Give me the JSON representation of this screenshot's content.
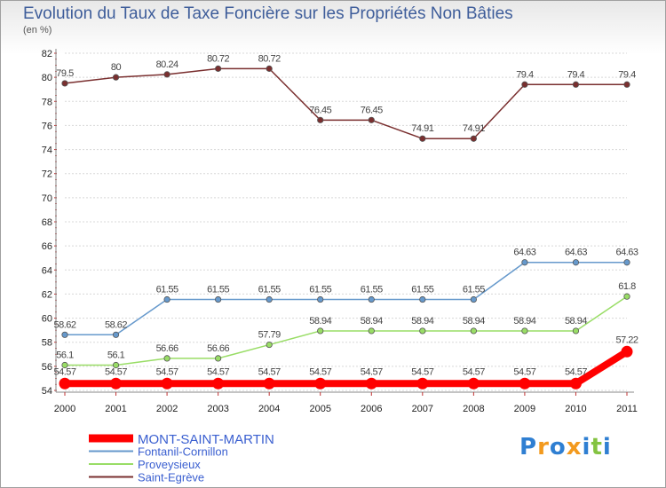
{
  "chart_data": {
    "type": "line",
    "title": "Evolution du Taux de Taxe Foncière sur les Propriétés Non Bâties",
    "subtitle": "(en %)",
    "xlabel": "",
    "ylabel": "(en %)",
    "categories": [
      "2000",
      "2001",
      "2002",
      "2003",
      "2004",
      "2005",
      "2006",
      "2007",
      "2008",
      "2009",
      "2010",
      "2011"
    ],
    "ylim": [
      54,
      82
    ],
    "yticks": [
      54,
      56,
      58,
      60,
      62,
      64,
      66,
      68,
      70,
      72,
      74,
      76,
      78,
      80,
      82
    ],
    "grid": "horizontal",
    "series": [
      {
        "name": "MONT-SAINT-MARTIN",
        "color": "#ff0000",
        "labels": [
          "54.57",
          "54.57",
          "54.57",
          "54.57",
          "54.57",
          "54.57",
          "54.57",
          "54.57",
          "54.57",
          "54.57",
          "54.57",
          "57.22"
        ],
        "values": [
          54.57,
          54.57,
          54.57,
          54.57,
          54.57,
          54.57,
          54.57,
          54.57,
          54.57,
          54.57,
          54.57,
          57.22
        ]
      },
      {
        "name": "Fontanil-Cornillon",
        "color": "#6699cc",
        "labels": [
          "58.62",
          "58.62",
          "61.55",
          "61.55",
          "61.55",
          "61.55",
          "61.55",
          "61.55",
          "61.55",
          "64.63",
          "64.63",
          "64.63"
        ],
        "values": [
          58.62,
          58.62,
          61.55,
          61.55,
          61.55,
          61.55,
          61.55,
          61.55,
          61.55,
          64.63,
          64.63,
          64.63
        ]
      },
      {
        "name": "Proveysieux",
        "color": "#99dd66",
        "labels": [
          "56.1",
          "56.1",
          "56.66",
          "56.66",
          "57.79",
          "58.94",
          "58.94",
          "58.94",
          "58.94",
          "58.94",
          "58.94",
          "61.8"
        ],
        "values": [
          56.1,
          56.1,
          56.66,
          56.66,
          57.79,
          58.94,
          58.94,
          58.94,
          58.94,
          58.94,
          58.94,
          61.8
        ]
      },
      {
        "name": "Saint-Egrève",
        "color": "#7a2f2f",
        "labels": [
          "79.5",
          "80",
          "80.24",
          "80.72",
          "80.72",
          "76.45",
          "76.45",
          "74.91",
          "74.91",
          "79.4",
          "79.4",
          "79.4"
        ],
        "values": [
          79.5,
          80,
          80.24,
          80.72,
          80.72,
          76.45,
          76.45,
          74.91,
          74.91,
          79.4,
          79.4,
          79.4
        ]
      }
    ]
  },
  "legend": {
    "items": [
      {
        "label": "MONT-SAINT-MARTIN",
        "color": "#ff0000"
      },
      {
        "label": "Fontanil-Cornillon",
        "color": "#6699cc"
      },
      {
        "label": "Proveysieux",
        "color": "#99dd66"
      },
      {
        "label": "Saint-Egrève",
        "color": "#7a2f2f"
      }
    ]
  },
  "brand": {
    "letters": [
      "P",
      "r",
      "o",
      "x",
      "i",
      "t",
      "i"
    ],
    "colors": [
      "#2f7fd2",
      "#f39a1e",
      "#2f7fd2",
      "#f39a1e",
      "#2f7fd2",
      "#84c341",
      "#2f7fd2"
    ]
  }
}
